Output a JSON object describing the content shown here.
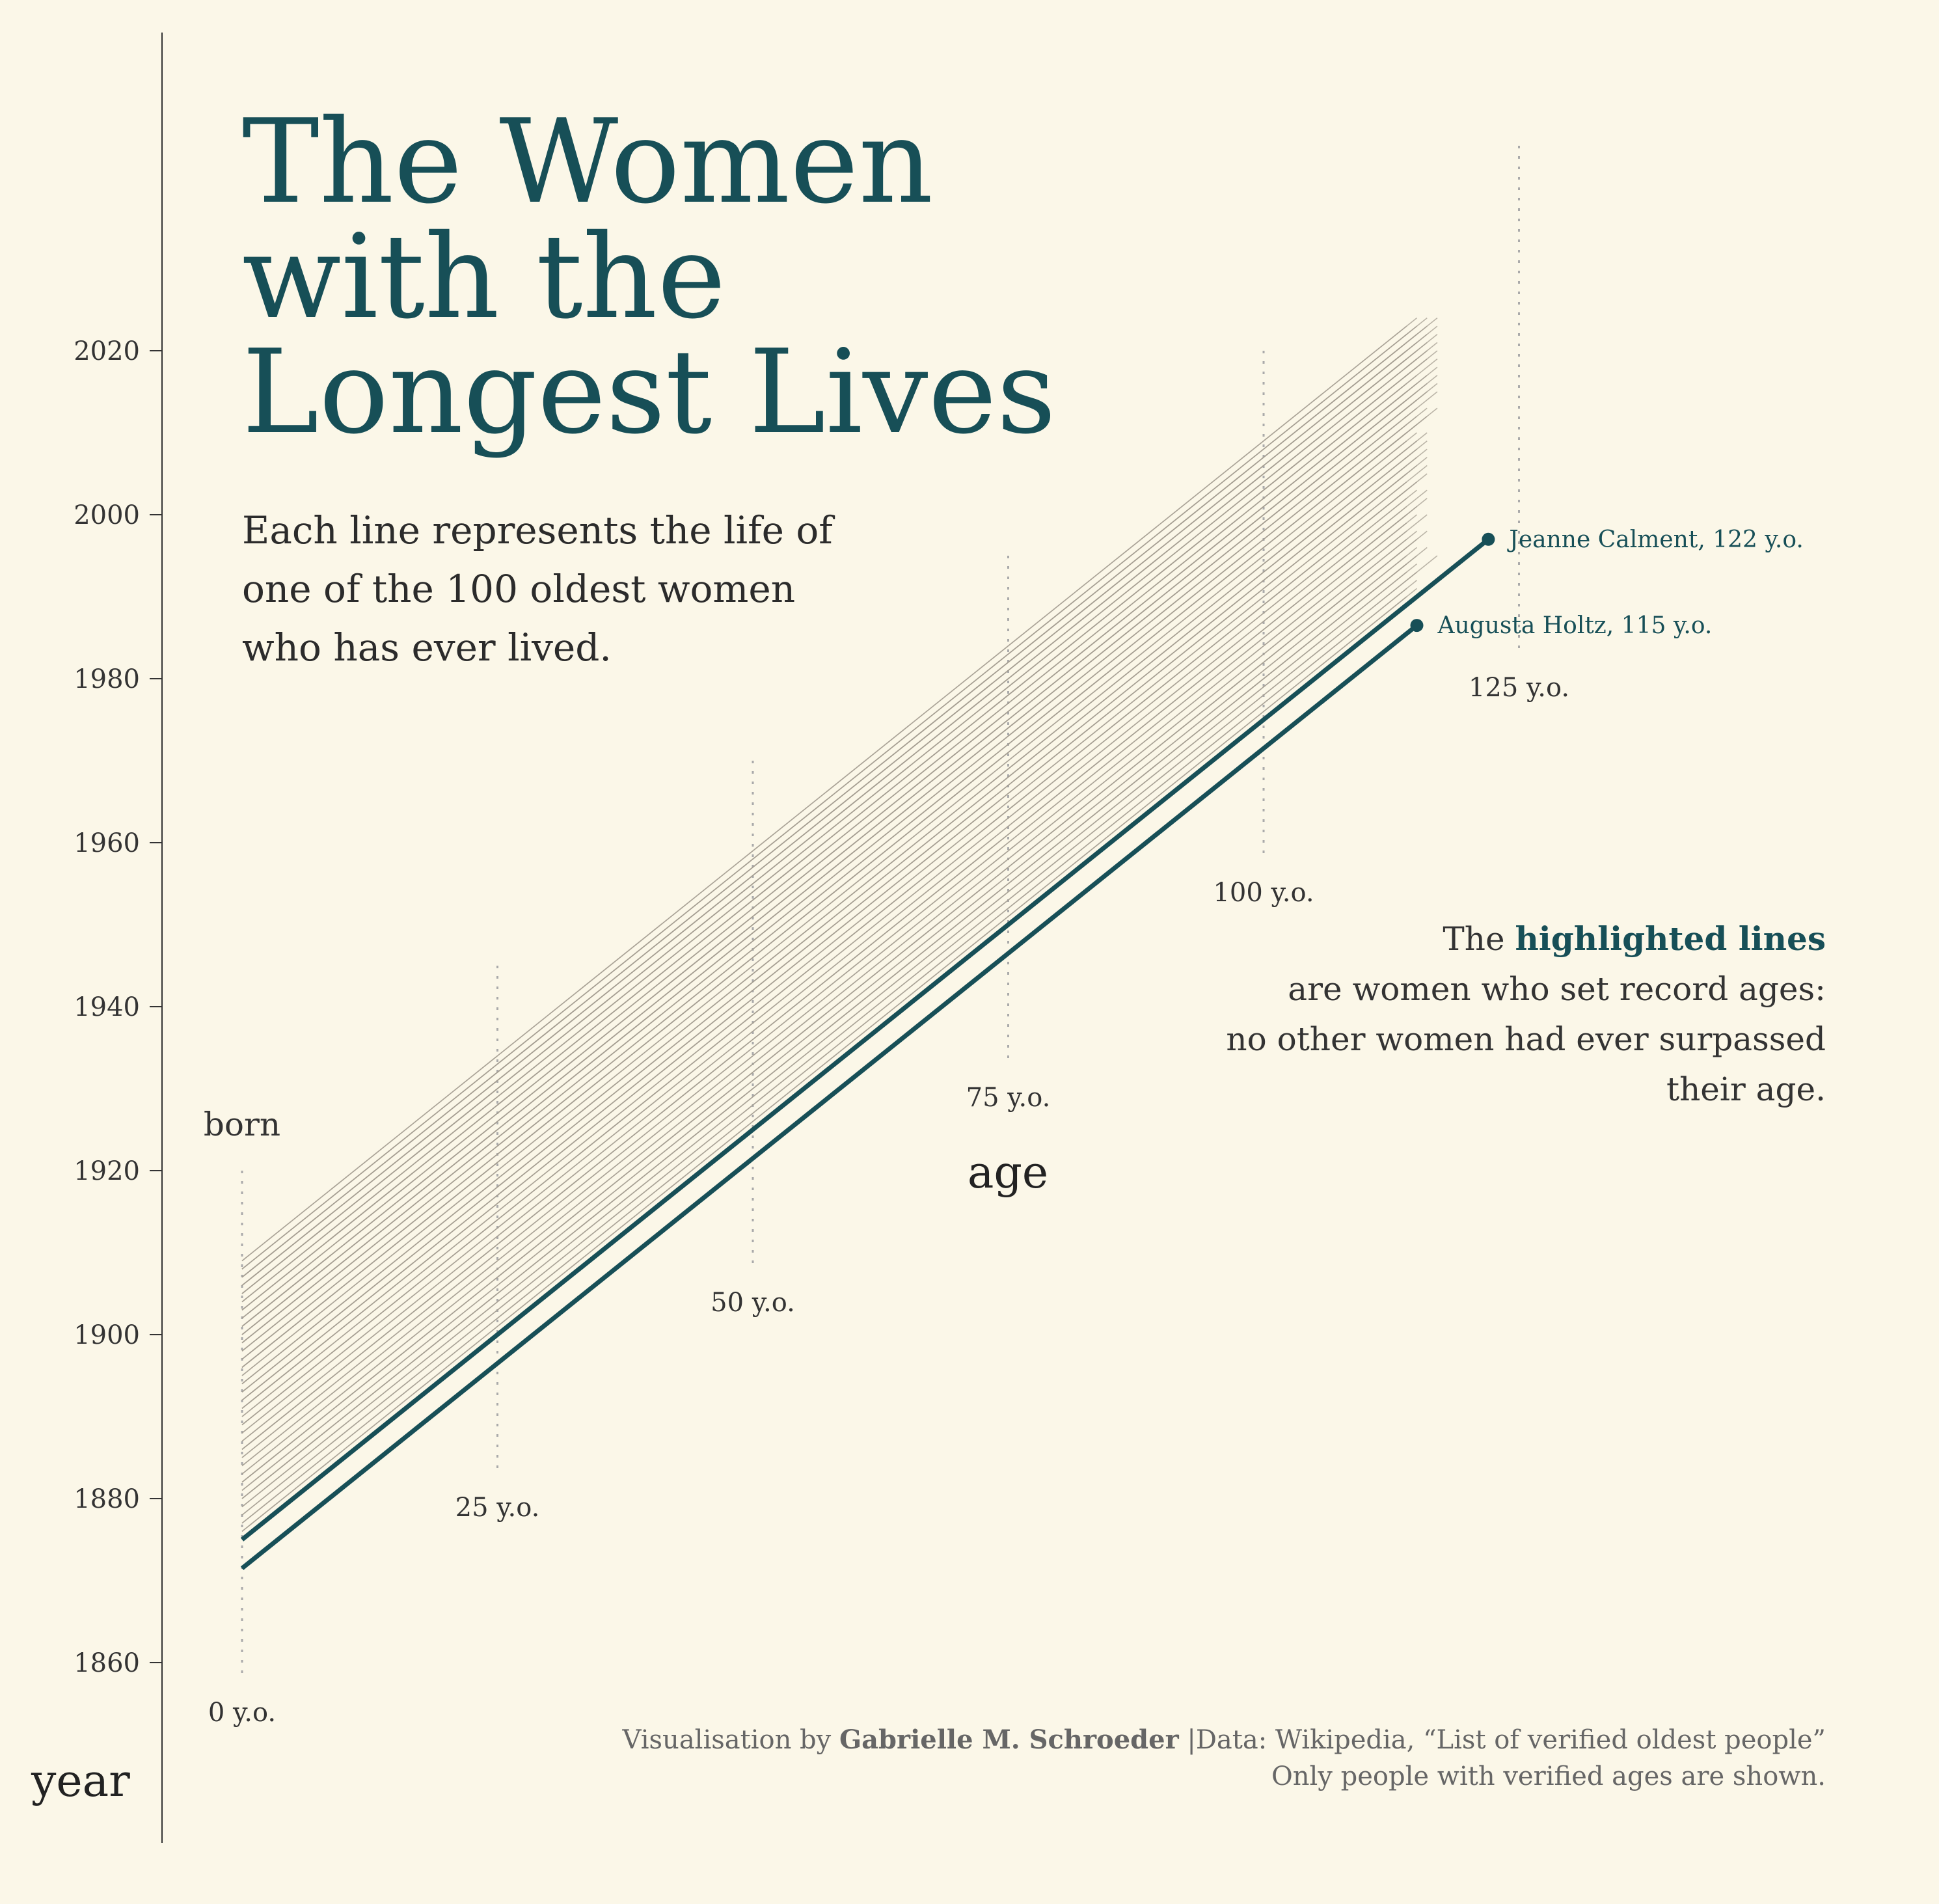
{
  "title": {
    "line1": "The Women",
    "line2": "with the",
    "line3": "Longest Lives"
  },
  "subtitle": {
    "line1": "Each line represents the life of",
    "line2": "one of the 100 oldest women",
    "line3": "who has ever lived."
  },
  "note": {
    "prefix": "The",
    "highlight": "highlighted lines",
    "line2": "are women who set record ages:",
    "line3": "no other women had ever surpassed",
    "line4": "their age."
  },
  "credit": {
    "prefix": "Visualisation by",
    "author": "Gabrielle M. Schroeder",
    "source": "|Data: Wikipedia, “List of verified oldest people”",
    "line2": "Only people with verified ages are shown."
  },
  "colors": {
    "background": "#fbf7e8",
    "highlight": "#174f57",
    "lines": "#a49e92",
    "text": "#2b2b2b"
  },
  "chart_data": {
    "type": "line",
    "xlabel": "age",
    "ylabel": "year",
    "start_label": "born",
    "xlim": [
      0,
      125
    ],
    "ylim": [
      1860,
      2020
    ],
    "yticks": [
      1860,
      1880,
      1900,
      1920,
      1940,
      1960,
      1980,
      2000,
      2020
    ],
    "age_ticks": [
      {
        "age": 0,
        "label": "0 y.o."
      },
      {
        "age": 25,
        "label": "25 y.o."
      },
      {
        "age": 50,
        "label": "50 y.o."
      },
      {
        "age": 75,
        "label": "75 y.o."
      },
      {
        "age": 100,
        "label": "100 y.o."
      },
      {
        "age": 125,
        "label": "125 y.o."
      }
    ],
    "highlighted": [
      {
        "name": "Jeanne Calment, 122 y.o.",
        "born": 1875,
        "age": 122
      },
      {
        "name": "Augusta Holtz, 115 y.o.",
        "born": 1871.5,
        "age": 115
      }
    ],
    "lives": [
      {
        "born": 1909,
        "age": 115
      },
      {
        "born": 1908,
        "age": 116
      },
      {
        "born": 1908,
        "age": 115
      },
      {
        "born": 1907,
        "age": 117
      },
      {
        "born": 1907,
        "age": 116
      },
      {
        "born": 1907,
        "age": 115
      },
      {
        "born": 1906,
        "age": 117
      },
      {
        "born": 1906,
        "age": 116
      },
      {
        "born": 1906,
        "age": 115
      },
      {
        "born": 1905,
        "age": 116
      },
      {
        "born": 1905,
        "age": 115
      },
      {
        "born": 1904,
        "age": 117
      },
      {
        "born": 1904,
        "age": 115
      },
      {
        "born": 1904,
        "age": 116
      },
      {
        "born": 1903,
        "age": 116
      },
      {
        "born": 1903,
        "age": 115
      },
      {
        "born": 1903,
        "age": 114
      },
      {
        "born": 1902,
        "age": 117
      },
      {
        "born": 1902,
        "age": 115
      },
      {
        "born": 1902,
        "age": 114
      },
      {
        "born": 1901,
        "age": 116
      },
      {
        "born": 1901,
        "age": 115
      },
      {
        "born": 1901,
        "age": 114
      },
      {
        "born": 1900,
        "age": 116
      },
      {
        "born": 1900,
        "age": 115
      },
      {
        "born": 1900,
        "age": 114
      },
      {
        "born": 1899,
        "age": 116
      },
      {
        "born": 1899,
        "age": 115
      },
      {
        "born": 1899,
        "age": 114
      },
      {
        "born": 1898,
        "age": 117
      },
      {
        "born": 1898,
        "age": 115
      },
      {
        "born": 1898,
        "age": 114
      },
      {
        "born": 1897,
        "age": 116
      },
      {
        "born": 1897,
        "age": 115
      },
      {
        "born": 1897,
        "age": 114
      },
      {
        "born": 1896,
        "age": 116
      },
      {
        "born": 1896,
        "age": 115
      },
      {
        "born": 1896,
        "age": 114
      },
      {
        "born": 1895,
        "age": 115
      },
      {
        "born": 1895,
        "age": 114
      },
      {
        "born": 1894,
        "age": 116
      },
      {
        "born": 1894,
        "age": 115
      },
      {
        "born": 1894,
        "age": 114
      },
      {
        "born": 1893,
        "age": 115
      },
      {
        "born": 1893,
        "age": 114
      },
      {
        "born": 1892,
        "age": 116
      },
      {
        "born": 1892,
        "age": 115
      },
      {
        "born": 1892,
        "age": 114
      },
      {
        "born": 1891,
        "age": 115
      },
      {
        "born": 1891,
        "age": 114
      },
      {
        "born": 1890,
        "age": 116
      },
      {
        "born": 1890,
        "age": 114
      },
      {
        "born": 1889,
        "age": 115
      },
      {
        "born": 1889,
        "age": 114
      },
      {
        "born": 1888,
        "age": 115
      },
      {
        "born": 1888,
        "age": 114
      },
      {
        "born": 1887,
        "age": 116
      },
      {
        "born": 1887,
        "age": 114
      },
      {
        "born": 1886,
        "age": 115
      },
      {
        "born": 1886,
        "age": 114
      },
      {
        "born": 1885,
        "age": 115
      },
      {
        "born": 1885,
        "age": 114
      },
      {
        "born": 1884,
        "age": 116
      },
      {
        "born": 1884,
        "age": 114
      },
      {
        "born": 1883,
        "age": 115
      },
      {
        "born": 1883,
        "age": 114
      },
      {
        "born": 1882,
        "age": 115
      },
      {
        "born": 1882,
        "age": 114
      },
      {
        "born": 1881,
        "age": 115
      },
      {
        "born": 1881,
        "age": 114
      },
      {
        "born": 1880,
        "age": 116
      },
      {
        "born": 1880,
        "age": 114
      },
      {
        "born": 1879,
        "age": 115
      },
      {
        "born": 1879,
        "age": 114
      },
      {
        "born": 1878,
        "age": 117
      },
      {
        "born": 1878,
        "age": 115
      },
      {
        "born": 1877,
        "age": 114
      },
      {
        "born": 1876,
        "age": 115
      },
      {
        "born": 1876,
        "age": 114
      },
      {
        "born": 1875,
        "age": 114
      },
      {
        "born": 1909,
        "age": 114
      },
      {
        "born": 1908,
        "age": 114
      },
      {
        "born": 1907,
        "age": 114
      },
      {
        "born": 1906,
        "age": 114
      },
      {
        "born": 1905,
        "age": 114
      },
      {
        "born": 1905,
        "age": 117
      },
      {
        "born": 1903,
        "age": 117
      },
      {
        "born": 1901,
        "age": 117
      },
      {
        "born": 1899,
        "age": 117
      },
      {
        "born": 1896,
        "age": 117
      },
      {
        "born": 1893,
        "age": 116
      },
      {
        "born": 1891,
        "age": 116
      },
      {
        "born": 1889,
        "age": 116
      },
      {
        "born": 1886,
        "age": 116
      },
      {
        "born": 1882,
        "age": 116
      },
      {
        "born": 1880,
        "age": 115
      },
      {
        "born": 1877,
        "age": 115
      },
      {
        "born": 1900,
        "age": 117
      }
    ]
  }
}
